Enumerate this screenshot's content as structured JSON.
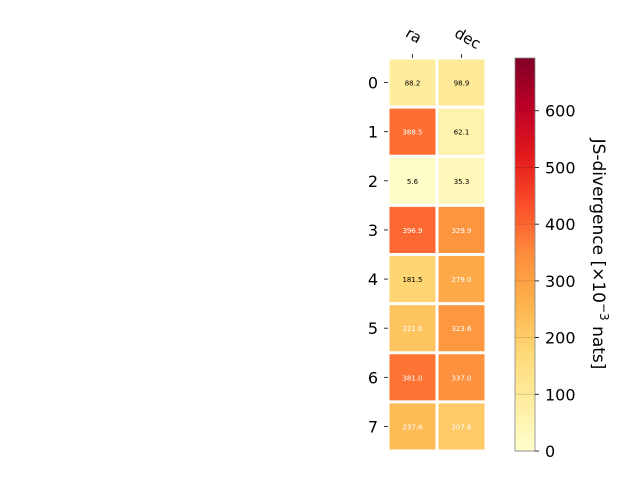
{
  "chart_data": {
    "type": "heatmap",
    "columns": [
      "ra",
      "dec"
    ],
    "rows": [
      "0",
      "1",
      "2",
      "3",
      "4",
      "5",
      "6",
      "7"
    ],
    "values": [
      [
        88.2,
        98.9
      ],
      [
        388.5,
        62.1
      ],
      [
        5.6,
        35.3
      ],
      [
        396.9,
        329.9
      ],
      [
        181.5,
        279.0
      ],
      [
        221.0,
        323.6
      ],
      [
        381.0,
        337.0
      ],
      [
        237.4,
        207.6
      ]
    ],
    "value_labels": [
      [
        "88.2",
        "98.9"
      ],
      [
        "388.5",
        "62.1"
      ],
      [
        "5.6",
        "35.3"
      ],
      [
        "396.9",
        "329.9"
      ],
      [
        "181.5",
        "279.0"
      ],
      [
        "221.0",
        "323.6"
      ],
      [
        "381.0",
        "337.0"
      ],
      [
        "237.4",
        "207.6"
      ]
    ],
    "colorbar": {
      "label_main": "JS-divergence [×10",
      "label_exp": "−3",
      "label_unit": " nats]",
      "range": [
        0,
        693
      ],
      "ticks": [
        0,
        100,
        200,
        300,
        400,
        500,
        600
      ],
      "colormap": "YlOrRd"
    }
  }
}
